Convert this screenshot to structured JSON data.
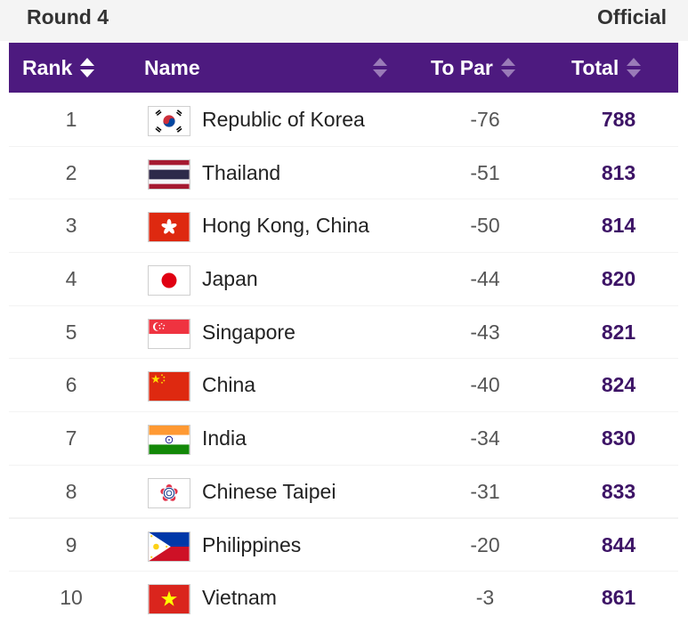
{
  "header": {
    "round": "Round 4",
    "status": "Official"
  },
  "columns": {
    "rank": "Rank",
    "name": "Name",
    "to_par": "To Par",
    "total": "Total"
  },
  "colors": {
    "header_bg": "#4d1a7f",
    "total_text": "#3d1466"
  },
  "rows": [
    {
      "rank": "1",
      "name": "Republic of Korea",
      "to_par": "-76",
      "total": "788",
      "flag": "korea-flag-icon"
    },
    {
      "rank": "2",
      "name": "Thailand",
      "to_par": "-51",
      "total": "813",
      "flag": "thailand-flag-icon"
    },
    {
      "rank": "3",
      "name": "Hong Kong, China",
      "to_par": "-50",
      "total": "814",
      "flag": "hong-kong-flag-icon"
    },
    {
      "rank": "4",
      "name": "Japan",
      "to_par": "-44",
      "total": "820",
      "flag": "japan-flag-icon"
    },
    {
      "rank": "5",
      "name": "Singapore",
      "to_par": "-43",
      "total": "821",
      "flag": "singapore-flag-icon"
    },
    {
      "rank": "6",
      "name": "China",
      "to_par": "-40",
      "total": "824",
      "flag": "china-flag-icon"
    },
    {
      "rank": "7",
      "name": "India",
      "to_par": "-34",
      "total": "830",
      "flag": "india-flag-icon"
    },
    {
      "rank": "8",
      "name": "Chinese Taipei",
      "to_par": "-31",
      "total": "833",
      "flag": "chinese-taipei-flag-icon"
    },
    {
      "rank": "9",
      "name": "Philippines",
      "to_par": "-20",
      "total": "844",
      "flag": "philippines-flag-icon"
    },
    {
      "rank": "10",
      "name": "Vietnam",
      "to_par": "-3",
      "total": "861",
      "flag": "vietnam-flag-icon"
    }
  ]
}
